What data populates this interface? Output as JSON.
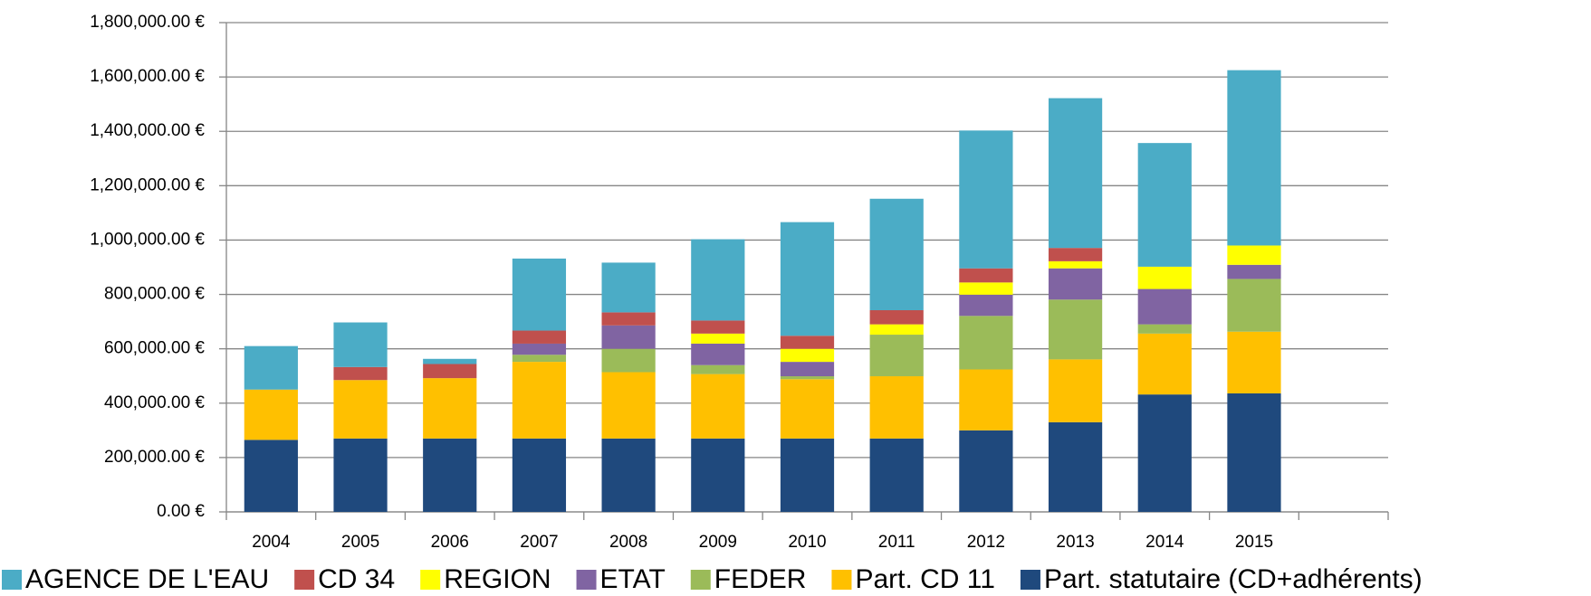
{
  "chart_data": {
    "type": "bar",
    "stacked": true,
    "categories": [
      "2004",
      "2005",
      "2006",
      "2007",
      "2008",
      "2009",
      "2010",
      "2011",
      "2012",
      "2013",
      "2014",
      "2015",
      null
    ],
    "series": [
      {
        "name": "AGENCE DE L'EAU",
        "color": "#4bacc6",
        "values": [
          160000,
          164000,
          19000,
          265000,
          183000,
          299000,
          418000,
          410000,
          507000,
          551000,
          455000,
          645000,
          null
        ]
      },
      {
        "name": "CD 34",
        "color": "#c0504d",
        "values": [
          0,
          48000,
          52000,
          48000,
          48000,
          48000,
          48000,
          52000,
          52000,
          49000,
          0,
          0,
          null
        ]
      },
      {
        "name": "REGION",
        "color": "#ffff00",
        "values": [
          0,
          0,
          0,
          0,
          0,
          37000,
          48000,
          38000,
          45000,
          26000,
          82000,
          71000,
          null
        ]
      },
      {
        "name": "ETAT",
        "color": "#8064a2",
        "values": [
          0,
          0,
          0,
          41000,
          86000,
          79000,
          53000,
          0,
          78000,
          115000,
          130000,
          52000,
          null
        ]
      },
      {
        "name": "FEDER",
        "color": "#9bbb59",
        "values": [
          0,
          0,
          0,
          26000,
          86000,
          33000,
          11000,
          153000,
          197000,
          220000,
          34000,
          194000,
          null
        ]
      },
      {
        "name": "Part. CD 11",
        "color": "#ffc000",
        "values": [
          185000,
          215000,
          222000,
          282000,
          244000,
          237000,
          218000,
          229000,
          224000,
          231000,
          224000,
          227000,
          null
        ]
      },
      {
        "name": "Part. statutaire (CD+adhérents)",
        "color": "#1f497d",
        "values": [
          265000,
          270000,
          270000,
          270000,
          270000,
          270000,
          270000,
          270000,
          300000,
          330000,
          432000,
          436000,
          null
        ]
      }
    ],
    "ylim": [
      0,
      1800000
    ],
    "yticks": [
      {
        "value": 0,
        "label": "0.00 €"
      },
      {
        "value": 200000,
        "label": "200,000.00 €"
      },
      {
        "value": 400000,
        "label": "400,000.00 €"
      },
      {
        "value": 600000,
        "label": "600,000.00 €"
      },
      {
        "value": 800000,
        "label": "800,000.00 €"
      },
      {
        "value": 1000000,
        "label": "1,000,000.00 €"
      },
      {
        "value": 1200000,
        "label": "1,200,000.00 €"
      },
      {
        "value": 1400000,
        "label": "1,400,000.00 €"
      },
      {
        "value": 1600000,
        "label": "1,600,000.00 €"
      },
      {
        "value": 1800000,
        "label": "1,800,000.00 €"
      }
    ],
    "grid": true,
    "legend": "bottom"
  }
}
